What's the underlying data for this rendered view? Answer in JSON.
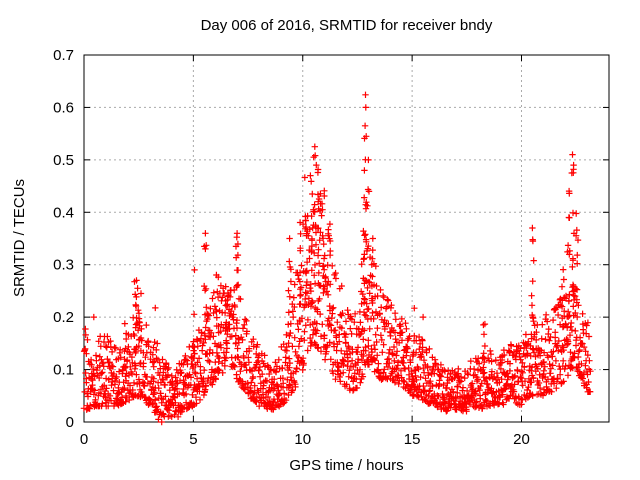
{
  "chart_data": {
    "type": "scatter",
    "title": "Day 006 of 2016, SRMTID for receiver bndy",
    "xlabel": "GPS time / hours",
    "ylabel": "SRMTID / TECUs",
    "xlim": [
      0,
      24
    ],
    "ylim": [
      0,
      0.7
    ],
    "grid": true,
    "legend": "none",
    "marker": "plus",
    "marker_size_px": 7,
    "series_color": "#ff0000",
    "grid_color": "#aaaaaa",
    "border_color": "#000000",
    "background_color": "#ffffff",
    "xticks": {
      "values": [
        0,
        5,
        10,
        15,
        20
      ],
      "labels": [
        "0",
        "5",
        "10",
        "15",
        "20"
      ]
    },
    "yticks": {
      "values": [
        0,
        0.1,
        0.2,
        0.3,
        0.4,
        0.5,
        0.6,
        0.7
      ],
      "labels": [
        "0",
        "0.1",
        "0.2",
        "0.3",
        "0.4",
        "0.5",
        "0.6",
        "0.7"
      ]
    },
    "time_range": [
      0,
      23.15
    ],
    "sampling_per_hour": 85,
    "seed": 20160106,
    "envelope": [
      [
        0,
        0.02,
        0.18
      ],
      [
        0.5,
        0.03,
        0.16
      ],
      [
        1,
        0.03,
        0.17
      ],
      [
        1.5,
        0.03,
        0.14
      ],
      [
        2,
        0.04,
        0.18
      ],
      [
        2.4,
        0.05,
        0.24
      ],
      [
        2.8,
        0.04,
        0.2
      ],
      [
        3.2,
        0.02,
        0.18
      ],
      [
        3.6,
        0.0,
        0.12
      ],
      [
        4,
        0.01,
        0.1
      ],
      [
        4.5,
        0.02,
        0.12
      ],
      [
        5,
        0.03,
        0.16
      ],
      [
        5.5,
        0.05,
        0.21
      ],
      [
        6,
        0.08,
        0.26
      ],
      [
        6.5,
        0.1,
        0.28
      ],
      [
        7,
        0.08,
        0.26
      ],
      [
        7.5,
        0.05,
        0.18
      ],
      [
        8,
        0.03,
        0.15
      ],
      [
        8.5,
        0.02,
        0.12
      ],
      [
        9,
        0.03,
        0.15
      ],
      [
        9.5,
        0.05,
        0.22
      ],
      [
        10,
        0.1,
        0.4
      ],
      [
        10.5,
        0.15,
        0.46
      ],
      [
        11,
        0.12,
        0.42
      ],
      [
        11.5,
        0.08,
        0.3
      ],
      [
        12,
        0.06,
        0.23
      ],
      [
        12.5,
        0.06,
        0.21
      ],
      [
        12.9,
        0.1,
        0.38
      ],
      [
        13.2,
        0.1,
        0.33
      ],
      [
        13.6,
        0.08,
        0.26
      ],
      [
        14,
        0.08,
        0.23
      ],
      [
        14.5,
        0.07,
        0.2
      ],
      [
        15,
        0.05,
        0.18
      ],
      [
        15.5,
        0.04,
        0.16
      ],
      [
        16,
        0.03,
        0.13
      ],
      [
        16.5,
        0.02,
        0.1
      ],
      [
        17,
        0.02,
        0.1
      ],
      [
        17.5,
        0.02,
        0.11
      ],
      [
        18,
        0.02,
        0.13
      ],
      [
        18.5,
        0.03,
        0.14
      ],
      [
        19,
        0.03,
        0.13
      ],
      [
        19.5,
        0.04,
        0.15
      ],
      [
        20,
        0.03,
        0.15
      ],
      [
        20.4,
        0.05,
        0.19
      ],
      [
        21,
        0.05,
        0.2
      ],
      [
        21.5,
        0.06,
        0.22
      ],
      [
        22,
        0.08,
        0.26
      ],
      [
        22.5,
        0.1,
        0.26
      ],
      [
        23,
        0.06,
        0.2
      ],
      [
        23.15,
        0.05,
        0.18
      ]
    ],
    "columns": [
      [
        1.9,
        0.08,
        0.21,
        6
      ],
      [
        2.35,
        0.1,
        0.27,
        10
      ],
      [
        2.55,
        0.08,
        0.25,
        8
      ],
      [
        3.2,
        0.05,
        0.22,
        8
      ],
      [
        5.0,
        0.05,
        0.31,
        10
      ],
      [
        5.55,
        0.08,
        0.36,
        10
      ],
      [
        6.1,
        0.12,
        0.3,
        8
      ],
      [
        6.5,
        0.15,
        0.33,
        8
      ],
      [
        7.0,
        0.12,
        0.36,
        10
      ],
      [
        9.4,
        0.1,
        0.35,
        10
      ],
      [
        9.9,
        0.15,
        0.42,
        10
      ],
      [
        10.15,
        0.18,
        0.47,
        12
      ],
      [
        10.4,
        0.2,
        0.5,
        12
      ],
      [
        10.55,
        0.25,
        0.53,
        10
      ],
      [
        10.75,
        0.2,
        0.5,
        12
      ],
      [
        11.0,
        0.18,
        0.45,
        10
      ],
      [
        11.2,
        0.15,
        0.4,
        8
      ],
      [
        12.75,
        0.12,
        0.45,
        10
      ],
      [
        12.87,
        0.2,
        0.62,
        14
      ],
      [
        13.0,
        0.15,
        0.5,
        8
      ],
      [
        13.2,
        0.12,
        0.35,
        8
      ],
      [
        15.1,
        0.06,
        0.22,
        6
      ],
      [
        18.3,
        0.05,
        0.2,
        6
      ],
      [
        20.5,
        0.08,
        0.37,
        10
      ],
      [
        21.9,
        0.1,
        0.3,
        8
      ],
      [
        22.15,
        0.15,
        0.45,
        10
      ],
      [
        22.35,
        0.18,
        0.51,
        12
      ],
      [
        22.55,
        0.12,
        0.4,
        8
      ]
    ],
    "peaks": [
      [
        12.87,
        0.624
      ],
      [
        12.88,
        0.6
      ],
      [
        12.85,
        0.565
      ],
      [
        12.9,
        0.545
      ],
      [
        13.0,
        0.5
      ],
      [
        10.55,
        0.525
      ],
      [
        10.5,
        0.505
      ],
      [
        10.62,
        0.49
      ],
      [
        10.35,
        0.47
      ],
      [
        22.33,
        0.51
      ],
      [
        22.38,
        0.49
      ],
      [
        22.3,
        0.475
      ],
      [
        20.5,
        0.37
      ],
      [
        20.52,
        0.345
      ],
      [
        5.55,
        0.36
      ],
      [
        5.5,
        0.335
      ],
      [
        7.0,
        0.36
      ],
      [
        6.95,
        0.335
      ],
      [
        9.4,
        0.35
      ],
      [
        13.2,
        0.35
      ],
      [
        2.4,
        0.27
      ],
      [
        2.45,
        0.255
      ],
      [
        0.45,
        0.2
      ],
      [
        15.5,
        0.2
      ],
      [
        3.4,
        0.005
      ],
      [
        3.55,
        0.0
      ],
      [
        4.3,
        0.01
      ]
    ]
  }
}
